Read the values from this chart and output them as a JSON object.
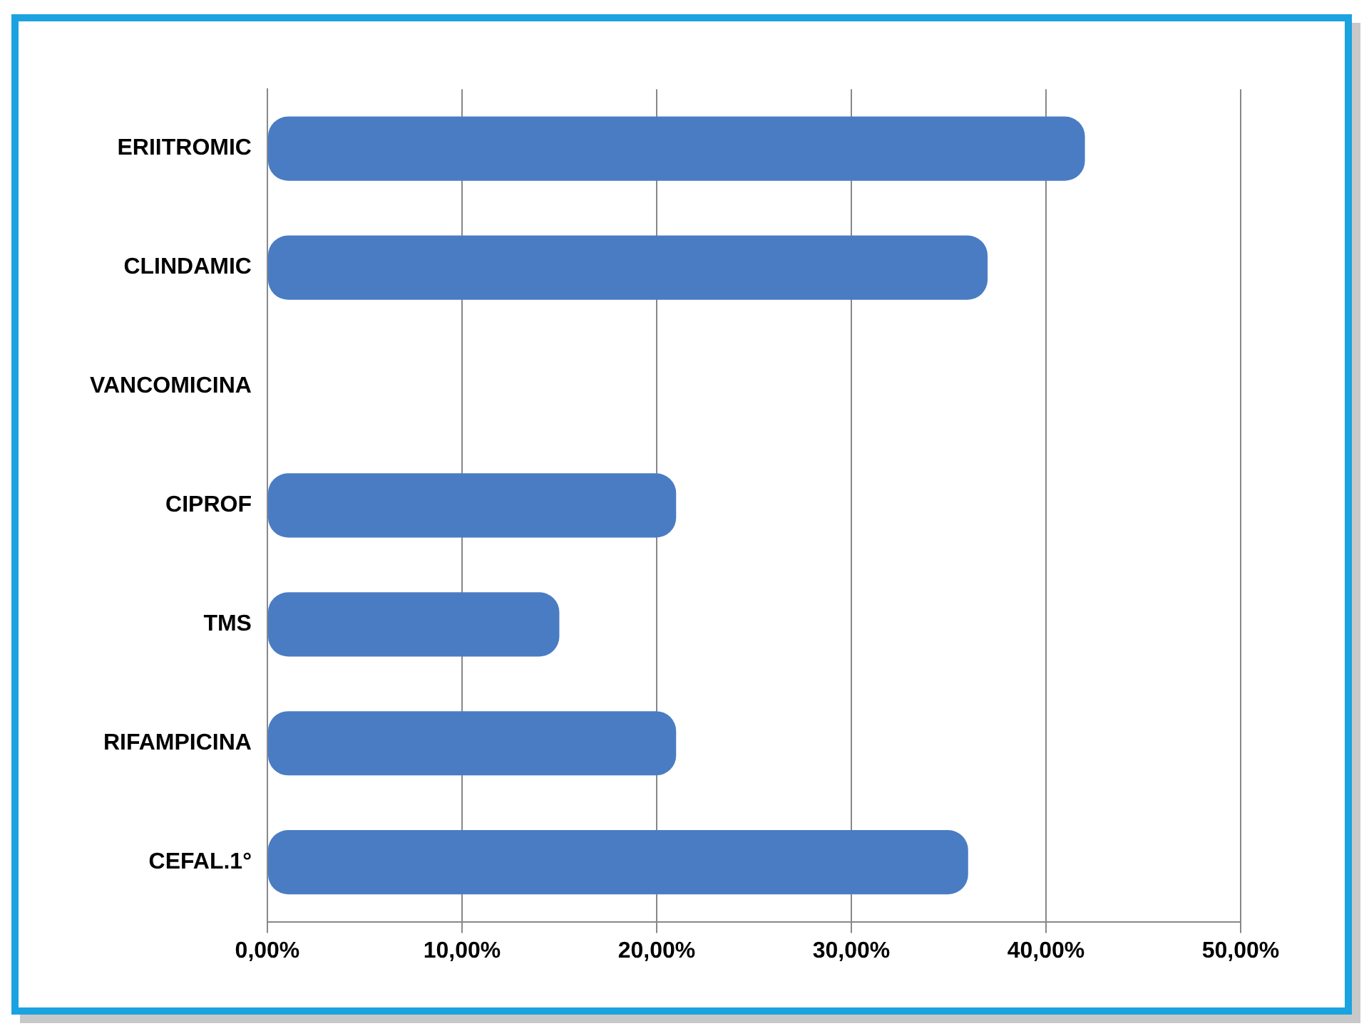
{
  "chart_data": {
    "type": "bar",
    "orientation": "horizontal",
    "categories": [
      "ERIITROMIC",
      "CLINDAMIC",
      "VANCOMICINA",
      "CIPROF",
      "TMS",
      "RIFAMPICINA",
      "CEFAL.1°"
    ],
    "values": [
      42,
      37,
      0,
      21,
      15,
      21,
      36
    ],
    "color": "#4a7cc4",
    "xlim": [
      0,
      50
    ],
    "xticks": [
      {
        "value": 0,
        "label": "0,00%"
      },
      {
        "value": 10,
        "label": "10,00%"
      },
      {
        "value": 20,
        "label": "20,00%"
      },
      {
        "value": 30,
        "label": "30,00%"
      },
      {
        "value": 40,
        "label": "40,00%"
      },
      {
        "value": 50,
        "label": "50,00%"
      }
    ],
    "grid": "x",
    "legend": false
  }
}
